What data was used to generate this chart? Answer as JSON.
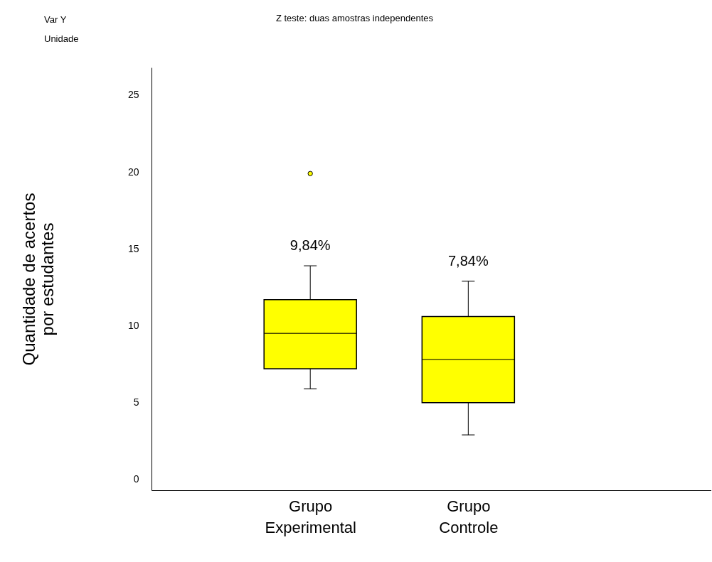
{
  "chart_data": {
    "type": "box",
    "title": "Z teste: duas amostras independentes",
    "ylabel": "Quantidade de acertos\npor estudantes",
    "categories": [
      "Grupo Experimental",
      "Grupo Controle"
    ],
    "boxes": [
      {
        "low": 5.9,
        "q1": 7.2,
        "median": 9.5,
        "q3": 11.7,
        "high": 13.9,
        "outliers": [
          19.9
        ]
      },
      {
        "low": 2.9,
        "q1": 5.0,
        "median": 7.8,
        "q3": 10.6,
        "high": 12.9
      }
    ],
    "color": "#ffff00",
    "ylim": [
      -0.7,
      26.8
    ],
    "yticks": [
      0,
      5,
      10,
      15,
      20,
      25
    ],
    "grid": false,
    "annotations": [
      "Var Y",
      "Unidade",
      "9,84%",
      "7,84%"
    ]
  }
}
